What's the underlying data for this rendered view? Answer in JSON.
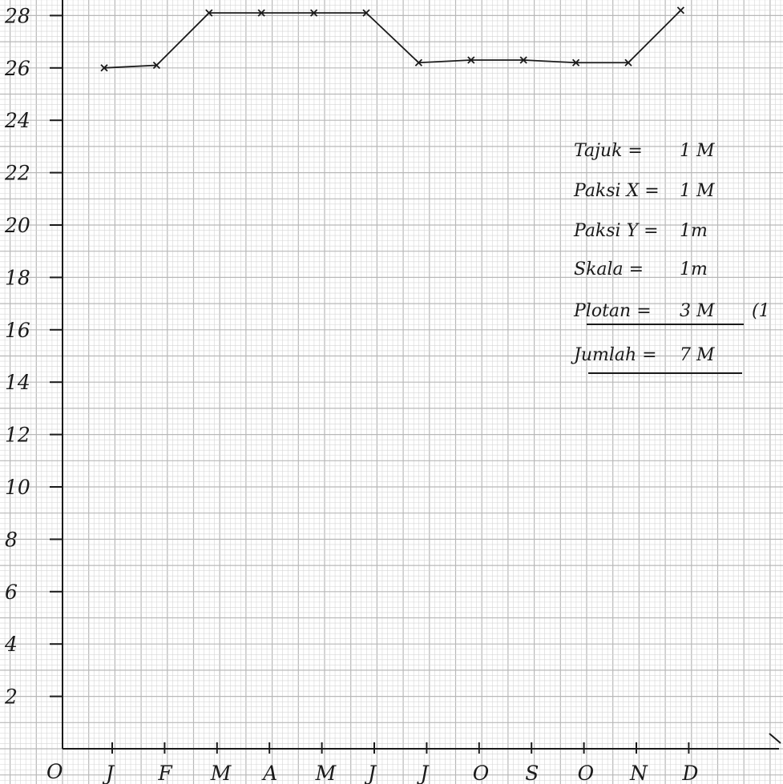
{
  "chart_data": {
    "type": "line",
    "title": "",
    "xlabel": "",
    "ylabel": "",
    "origin_label": "O",
    "categories": [
      "J",
      "F",
      "M",
      "A",
      "M",
      "J",
      "J",
      "O",
      "S",
      "O",
      "N",
      "D"
    ],
    "y_ticks": [
      2,
      4,
      6,
      8,
      10,
      12,
      14,
      16,
      18,
      20,
      22,
      24,
      26,
      28
    ],
    "ylim": [
      0,
      28
    ],
    "grid": true,
    "series": [
      {
        "values": [
          26,
          26.1,
          28.1,
          28.1,
          28.1,
          28.1,
          26.2,
          26.3,
          26.3,
          26.2,
          26.2,
          28.2
        ],
        "color": "#1a1a1a",
        "marker": "x"
      }
    ]
  },
  "notes": [
    {
      "text": "Tajuk =",
      "value": "1 M"
    },
    {
      "text": "Paksi X =",
      "value": "1 M"
    },
    {
      "text": "Paksi Y =",
      "value": "1m"
    },
    {
      "text": "Skala =",
      "value": "1m"
    },
    {
      "text": "Plotan =",
      "value": "3 M",
      "suffix": "(1"
    },
    {
      "text": "Jumlah =",
      "value": "7 M"
    }
  ],
  "colors": {
    "grid_minor": "#d6d6d6",
    "grid_major": "#b8b8b8",
    "ink": "#1a1a1a"
  }
}
